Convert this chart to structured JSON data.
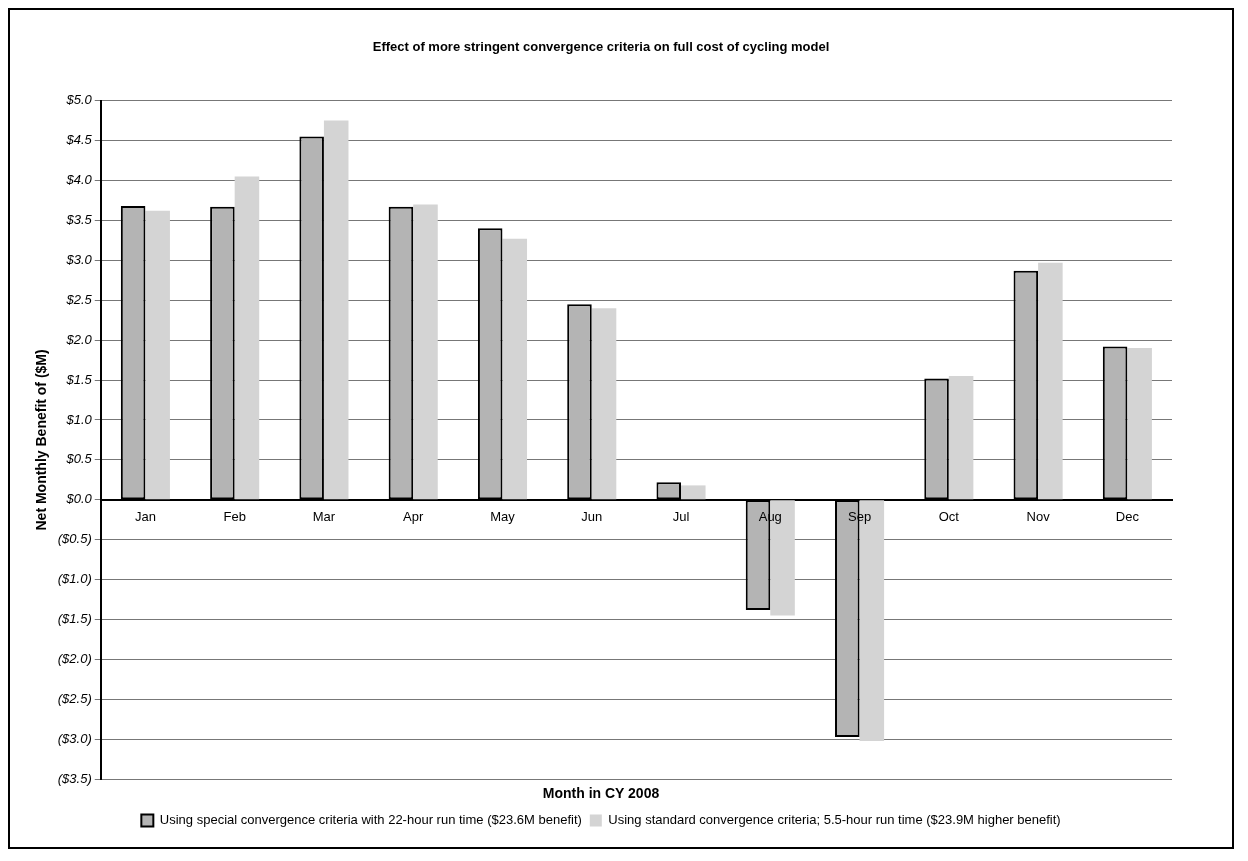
{
  "chart_data": {
    "type": "bar",
    "title": "Effect of more stringent convergence criteria on full cost of cycling model",
    "xlabel": "Month in CY 2008",
    "ylabel": "Net Monthly Benefit of ($M)",
    "categories": [
      "Jan",
      "Feb",
      "Mar",
      "Apr",
      "May",
      "Jun",
      "Jul",
      "Aug",
      "Sep",
      "Oct",
      "Nov",
      "Dec"
    ],
    "series": [
      {
        "name": "Using special convergence criteria with 22-hour run time ($23.6M benefit)",
        "color": "#b4b4b4",
        "values": [
          3.68,
          3.67,
          4.55,
          3.67,
          3.4,
          2.45,
          0.22,
          -1.38,
          -2.97,
          1.52,
          2.87,
          1.92
        ]
      },
      {
        "name": "Using standard convergence criteria; 5.5-hour run time ($23.9M higher benefit)",
        "color": "#d4d4d4",
        "values": [
          3.62,
          4.05,
          4.75,
          3.7,
          3.27,
          2.4,
          0.18,
          -1.45,
          -3.02,
          1.55,
          2.97,
          1.9
        ]
      }
    ],
    "ylim": [
      -3.5,
      5.0
    ],
    "yticks": [
      {
        "value": -3.5,
        "label": "($3.5)"
      },
      {
        "value": -3.0,
        "label": "($3.0)"
      },
      {
        "value": -2.5,
        "label": "($2.5)"
      },
      {
        "value": -2.0,
        "label": "($2.0)"
      },
      {
        "value": -1.5,
        "label": "($1.5)"
      },
      {
        "value": -1.0,
        "label": "($1.0)"
      },
      {
        "value": -0.5,
        "label": "($0.5)"
      },
      {
        "value": 0,
        "label": "$0.0"
      },
      {
        "value": 0.5,
        "label": "$0.5"
      },
      {
        "value": 1.0,
        "label": "$1.0"
      },
      {
        "value": 1.5,
        "label": "$1.5"
      },
      {
        "value": 2.0,
        "label": "$2.0"
      },
      {
        "value": 2.5,
        "label": "$2.5"
      },
      {
        "value": 3.0,
        "label": "$3.0"
      },
      {
        "value": 3.5,
        "label": "$3.5"
      },
      {
        "value": 4.0,
        "label": "$4.0"
      },
      {
        "value": 4.5,
        "label": "$4.5"
      },
      {
        "value": 5.0,
        "label": "$5.0"
      }
    ],
    "grid": "y",
    "legend": "bottom"
  }
}
